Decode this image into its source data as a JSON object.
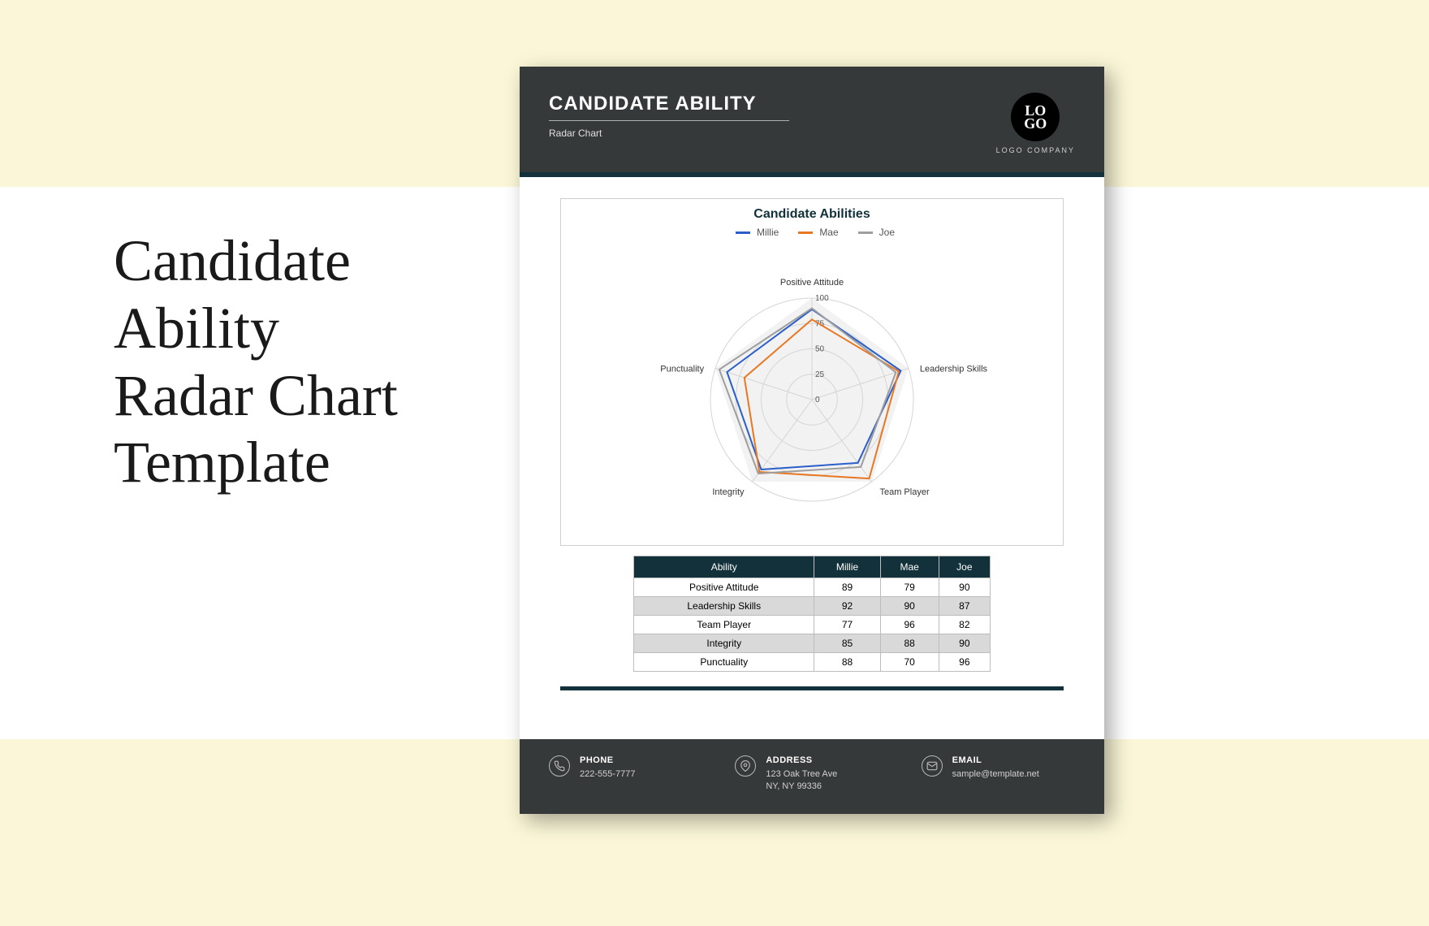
{
  "page": {
    "background_color": "#ffffff",
    "cream_band_color": "#faf6d7",
    "side_title": "Candidate\nAbility\nRadar Chart\nTemplate",
    "side_title_fontsize": 72,
    "side_title_color": "#1a1a1a"
  },
  "document": {
    "header": {
      "bg_color": "#36393a",
      "title": "CANDIDATE ABILITY",
      "subtitle": "Radar Chart",
      "logo_top": "LO",
      "logo_bottom": "GO",
      "logo_company": "LOGO COMPANY",
      "divider_color": "#12313a"
    },
    "chart": {
      "type": "radar",
      "title": "Candidate Abilities",
      "title_color": "#12313a",
      "title_fontsize": 16,
      "border_color": "#cfcfcf",
      "grid_color": "#d5d5d5",
      "background_shade": "#f2f2f2",
      "axes": [
        "Positive Attitude",
        "Leadership Skills",
        "Team Player",
        "Integrity",
        "Punctuality"
      ],
      "ticks": [
        0,
        25,
        50,
        75,
        100
      ],
      "max": 100,
      "series": [
        {
          "name": "Millie",
          "color": "#2a5fc9",
          "width": 2,
          "values": [
            89,
            92,
            77,
            85,
            88
          ]
        },
        {
          "name": "Mae",
          "color": "#e87722",
          "width": 2,
          "values": [
            79,
            90,
            96,
            88,
            70
          ]
        },
        {
          "name": "Joe",
          "color": "#9e9e9e",
          "width": 2,
          "values": [
            90,
            87,
            82,
            90,
            96
          ]
        }
      ],
      "axis_label_fontsize": 11,
      "tick_label_fontsize": 10
    },
    "table": {
      "header_bg": "#12313a",
      "header_text_color": "#ffffff",
      "border_color": "#bdbdbd",
      "alt_row_bg": "#d9d9d9",
      "columns": [
        "Ability",
        "Millie",
        "Mae",
        "Joe"
      ],
      "rows": [
        [
          "Positive Attitude",
          89,
          79,
          90
        ],
        [
          "Leadership Skills",
          92,
          90,
          87
        ],
        [
          "Team Player",
          77,
          96,
          82
        ],
        [
          "Integrity",
          85,
          88,
          90
        ],
        [
          "Punctuality",
          88,
          70,
          96
        ]
      ]
    },
    "footer": {
      "bg_color": "#36393a",
      "divider_color": "#12313a",
      "items": [
        {
          "icon": "phone-icon",
          "label": "PHONE",
          "value": "222-555-7777"
        },
        {
          "icon": "address-icon",
          "label": "ADDRESS",
          "value": "123 Oak Tree Ave\nNY, NY 99336"
        },
        {
          "icon": "email-icon",
          "label": "EMAIL",
          "value": "sample@template.net"
        }
      ]
    }
  }
}
